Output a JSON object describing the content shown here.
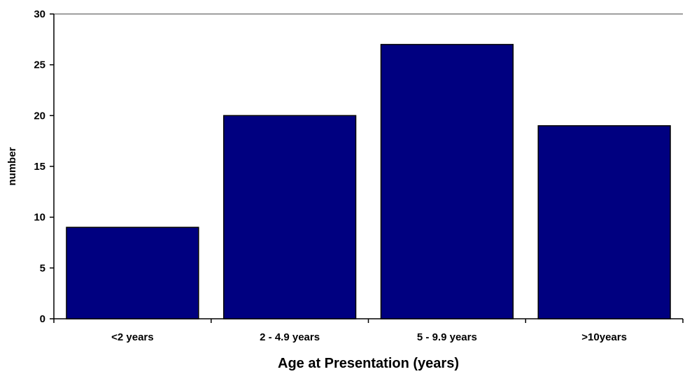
{
  "chart_data": {
    "type": "bar",
    "categories": [
      "<2 years",
      "2 - 4.9 years",
      "5 - 9.9 years",
      ">10years"
    ],
    "values": [
      9,
      20,
      27,
      19
    ],
    "xlabel": "Age at Presentation (years)",
    "ylabel": "number",
    "ylim": [
      0,
      30
    ],
    "yticks": [
      "0",
      "5",
      "10",
      "15",
      "20",
      "25",
      "30"
    ],
    "grid": false,
    "legend": "none",
    "bar_color": "#000080"
  }
}
